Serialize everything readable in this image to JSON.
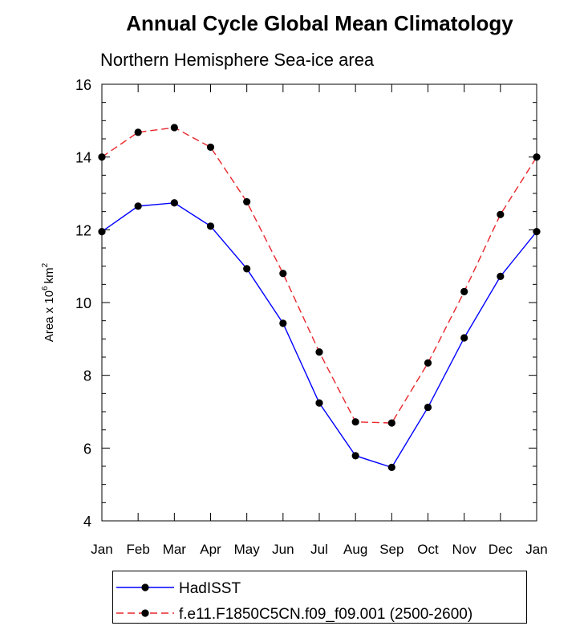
{
  "chart_data": {
    "type": "line",
    "title": "Annual Cycle Global Mean Climatology",
    "subtitle": "Northern Hemisphere Sea-ice area",
    "ylabel_base": "Area x 10",
    "ylabel_exp": "6",
    "ylabel_unit": "km",
    "ylabel_unit_exp": "2",
    "categories": [
      "Jan",
      "Feb",
      "Mar",
      "Apr",
      "May",
      "Jun",
      "Jul",
      "Aug",
      "Sep",
      "Oct",
      "Nov",
      "Dec",
      "Jan"
    ],
    "ylim": [
      4,
      16
    ],
    "yticks": [
      4,
      6,
      8,
      10,
      12,
      14,
      16
    ],
    "ytick_labels": [
      "4",
      "6",
      "8",
      "10",
      "12",
      "14",
      "16"
    ],
    "grid": false,
    "legend_position": "bottom",
    "series": [
      {
        "name": "HadISST",
        "color": "#0000ff",
        "dash": "solid",
        "values": [
          11.95,
          12.65,
          12.74,
          12.1,
          10.93,
          9.43,
          7.24,
          5.79,
          5.47,
          7.12,
          9.03,
          10.72,
          11.95
        ]
      },
      {
        "name": "f.e11.F1850C5CN.f09_f09.001 (2500-2600)",
        "color": "#e8262b",
        "dash": "dashed",
        "values": [
          14.0,
          14.68,
          14.81,
          14.27,
          12.77,
          10.8,
          8.64,
          6.72,
          6.69,
          8.34,
          10.3,
          12.42,
          14.0
        ]
      }
    ]
  }
}
